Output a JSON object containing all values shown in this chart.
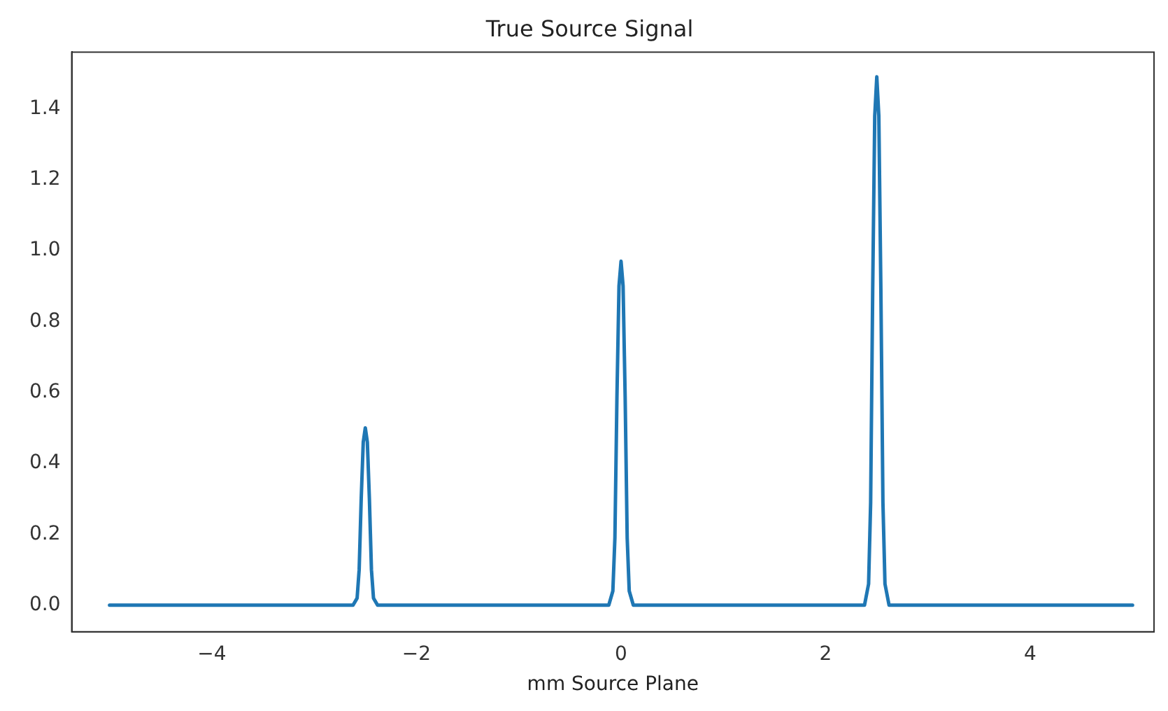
{
  "chart_data": {
    "type": "line",
    "title": "True Source Signal",
    "xlabel": "mm Source Plane",
    "series": [
      {
        "color": "#1f77b4",
        "x": [
          -5,
          -2.62,
          -2.58,
          -2.56,
          -2.54,
          -2.52,
          -2.5,
          -2.48,
          -2.46,
          -2.44,
          -2.42,
          -2.38,
          -0.12,
          -0.08,
          -0.06,
          -0.04,
          -0.02,
          0,
          0.02,
          0.04,
          0.06,
          0.08,
          0.12,
          2.38,
          2.42,
          2.44,
          2.46,
          2.48,
          2.5,
          2.52,
          2.54,
          2.56,
          2.58,
          2.62,
          5
        ],
        "values": [
          0,
          0,
          0.02,
          0.1,
          0.3,
          0.46,
          0.5,
          0.46,
          0.3,
          0.1,
          0.02,
          0,
          0,
          0.04,
          0.19,
          0.59,
          0.9,
          0.97,
          0.9,
          0.59,
          0.19,
          0.04,
          0,
          0,
          0.06,
          0.29,
          0.89,
          1.38,
          1.49,
          1.38,
          0.89,
          0.29,
          0.06,
          0,
          0
        ]
      }
    ],
    "xlim": [
      -5.37,
      5.21
    ],
    "ylim": [
      -0.075,
      1.56
    ],
    "xticks": [
      {
        "value": -4,
        "label": "−4"
      },
      {
        "value": -2,
        "label": "−2"
      },
      0,
      2,
      4
    ],
    "yticks": [
      {
        "value": 0,
        "label": "0.0"
      },
      {
        "value": 0.2,
        "label": "0.2"
      },
      {
        "value": 0.4,
        "label": "0.4"
      },
      {
        "value": 0.6,
        "label": "0.6"
      },
      {
        "value": 0.8,
        "label": "0.8"
      },
      {
        "value": 1,
        "label": "1.0"
      },
      {
        "value": 1.2,
        "label": "1.2"
      },
      {
        "value": 1.4,
        "label": "1.4"
      }
    ],
    "grid": false,
    "marker": "none",
    "line_style": "solid"
  }
}
